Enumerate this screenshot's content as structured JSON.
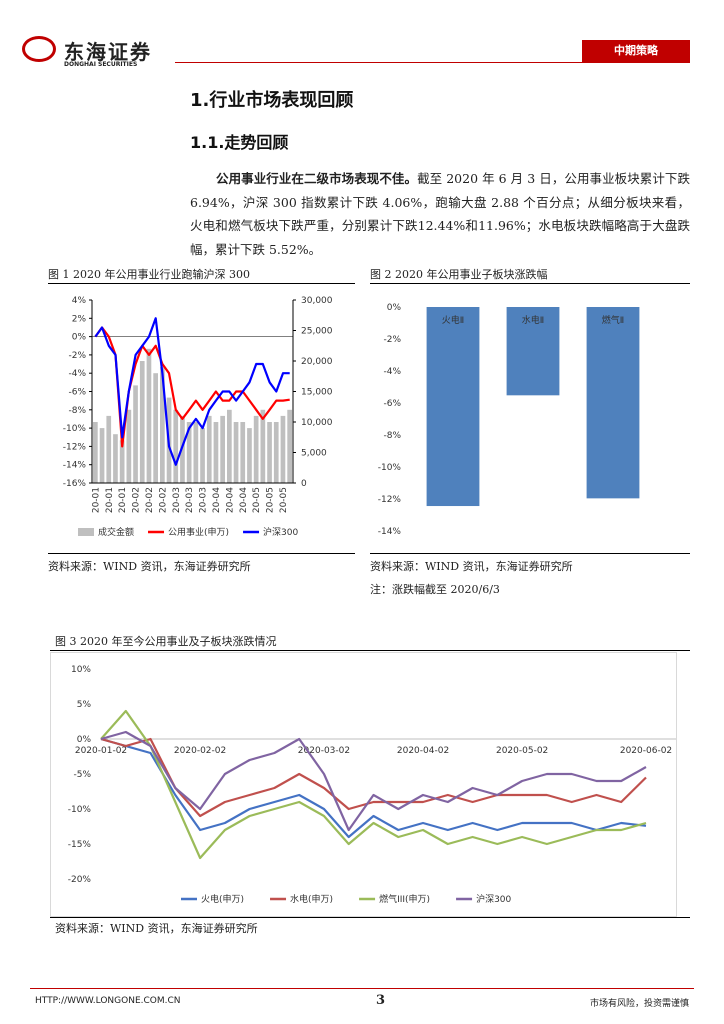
{
  "header": {
    "logo": "东海证券",
    "logo_en": "DONGHAI SECURITIES",
    "tag": "中期策略"
  },
  "section": {
    "title": "1.行业市场表现回顾",
    "subtitle": "1.1.走势回顾",
    "lead": "公用事业行业在二级市场表现不佳。",
    "text": "截至 2020 年 6 月 3 日，公用事业板块累计下跌 6.94%，沪深 300 指数累计下跌 4.06%，跑输大盘 2.88 个百分点；从细分板块来看，火电和燃气板块下跌严重，分别累计下跌12.44%和11.96%；水电板块跌幅略高于大盘跌幅，累计下跌 5.52%。"
  },
  "figures": [
    {
      "caption": "图 1 2020 年公用事业行业跑输沪深 300",
      "source": "资料来源：WIND 资讯，东海证券研究所"
    },
    {
      "caption": "图 2 2020 年公用事业子板块涨跌幅",
      "source": "资料来源：WIND 资讯，东海证券研究所",
      "note": "注：涨跌幅截至 2020/6/3"
    },
    {
      "caption": "图 3 2020 年至今公用事业及子板块涨跌情况",
      "source": "资料来源：WIND 资讯，东海证券研究所"
    }
  ],
  "chart_data": [
    {
      "type": "combo",
      "categories": [
        "20-01",
        null,
        "20-01",
        null,
        "20-01",
        null,
        "20-02",
        null,
        "20-02",
        null,
        "20-02",
        null,
        "20-03",
        null,
        "20-03",
        null,
        "20-03",
        null,
        "20-04",
        null,
        "20-04",
        null,
        "20-04",
        null,
        "20-05",
        null,
        "20-05",
        null,
        "20-05",
        null
      ],
      "series": [
        {
          "name": "成交金额",
          "color": "#bfbfbf",
          "kind": "bar",
          "axis": "y2",
          "values": [
            10000,
            9000,
            11000,
            8000,
            7000,
            12000,
            16000,
            20000,
            22000,
            18000,
            19000,
            14000,
            12000,
            11000,
            10000,
            10000,
            9000,
            11000,
            10000,
            11000,
            12000,
            10000,
            10000,
            9000,
            11000,
            12000,
            10000,
            10000,
            11000,
            12000
          ]
        },
        {
          "name": "公用事业(申万)",
          "color": "#ff0000",
          "kind": "line",
          "values": [
            0,
            1,
            0,
            -2,
            -12,
            -6,
            -3,
            -1,
            -2,
            -1,
            -3,
            -4,
            -8,
            -9,
            -8,
            -7,
            -8,
            -7,
            -6,
            -7,
            -7,
            -6,
            -6,
            -7,
            -8,
            -9,
            -8,
            -7,
            -7,
            -6.9
          ]
        },
        {
          "name": "沪深300",
          "color": "#0000ff",
          "kind": "line",
          "values": [
            0,
            1,
            -1,
            -2,
            -11,
            -6,
            -2,
            -1,
            0,
            2,
            -4,
            -12,
            -14,
            -12,
            -10,
            -9,
            -10,
            -8,
            -7,
            -6,
            -6,
            -7,
            -6,
            -5,
            -3,
            -3,
            -5,
            -6,
            -4,
            -4
          ]
        }
      ],
      "ylim": [
        -16,
        4
      ],
      "yticks": [
        {
          "value": 4,
          "label": "4%"
        },
        {
          "value": 2,
          "label": "2%"
        },
        {
          "value": 0,
          "label": "0%"
        },
        {
          "value": -2,
          "label": "-2%"
        },
        {
          "value": -4,
          "label": "-4%"
        },
        {
          "value": -6,
          "label": "-6%"
        },
        {
          "value": -8,
          "label": "-8%"
        },
        {
          "value": -10,
          "label": "-10%"
        },
        {
          "value": -12,
          "label": "-12%"
        },
        {
          "value": -14,
          "label": "-14%"
        },
        {
          "value": -16,
          "label": "-16%"
        }
      ],
      "y2lim": [
        0,
        30000
      ],
      "y2ticks": [
        {
          "value": 30000,
          "label": "30,000"
        },
        {
          "value": 25000,
          "label": "25,000"
        },
        {
          "value": 20000,
          "label": "20,000"
        },
        {
          "value": 15000,
          "label": "15,000"
        },
        {
          "value": 10000,
          "label": "10,000"
        },
        {
          "value": 5000,
          "label": "5,000"
        },
        0
      ],
      "legend": "bottom"
    },
    {
      "type": "bar",
      "categories": [
        "火电Ⅱ",
        "水电Ⅱ",
        "燃气Ⅱ"
      ],
      "values": [
        -12.44,
        -5.52,
        -11.96
      ],
      "color": "#4f81bd",
      "ylim": [
        -14,
        0
      ],
      "yticks": [
        {
          "value": 0,
          "label": "0%"
        },
        {
          "value": -2,
          "label": "-2%"
        },
        {
          "value": -4,
          "label": "-4%"
        },
        {
          "value": -6,
          "label": "-6%"
        },
        {
          "value": -8,
          "label": "-8%"
        },
        {
          "value": -10,
          "label": "-10%"
        },
        {
          "value": -12,
          "label": "-12%"
        },
        {
          "value": -14,
          "label": "-14%"
        }
      ]
    },
    {
      "type": "line",
      "categories": [
        "2020-01-02",
        null,
        null,
        null,
        "2020-02-02",
        null,
        null,
        null,
        null,
        "2020-03-02",
        null,
        null,
        null,
        "2020-04-02",
        null,
        null,
        null,
        "2020-05-02",
        null,
        null,
        null,
        null,
        "2020-06-02"
      ],
      "series": [
        {
          "name": "火电(申万)",
          "color": "#4472c4",
          "values": [
            0,
            -1,
            -2,
            -8,
            -13,
            -12,
            -10,
            -9,
            -8,
            -10,
            -14,
            -11,
            -13,
            -12,
            -13,
            -12,
            -13,
            -12,
            -12,
            -12,
            -13,
            -12,
            -12.4
          ]
        },
        {
          "name": "水电(申万)",
          "color": "#c0504d",
          "values": [
            0,
            -1,
            0,
            -7,
            -11,
            -9,
            -8,
            -7,
            -5,
            -7,
            -10,
            -9,
            -9,
            -9,
            -8,
            -9,
            -8,
            -8,
            -8,
            -9,
            -8,
            -9,
            -5.5
          ]
        },
        {
          "name": "燃气III(申万)",
          "color": "#9bbb59",
          "values": [
            0,
            4,
            -1,
            -9,
            -17,
            -13,
            -11,
            -10,
            -9,
            -11,
            -15,
            -12,
            -14,
            -13,
            -15,
            -14,
            -15,
            -14,
            -15,
            -14,
            -13,
            -13,
            -12
          ]
        },
        {
          "name": "沪深300",
          "color": "#8064a2",
          "values": [
            0,
            1,
            -1,
            -7,
            -10,
            -5,
            -3,
            -2,
            0,
            -5,
            -13,
            -8,
            -10,
            -8,
            -9,
            -7,
            -8,
            -6,
            -5,
            -5,
            -6,
            -6,
            -4
          ]
        }
      ],
      "ylim": [
        -20,
        10
      ],
      "yticks": [
        {
          "value": 10,
          "label": "10%"
        },
        {
          "value": 5,
          "label": "5%"
        },
        {
          "value": 0,
          "label": "0%"
        },
        {
          "value": -5,
          "label": "-5%"
        },
        {
          "value": -10,
          "label": "-10%"
        },
        {
          "value": -15,
          "label": "-15%"
        },
        {
          "value": -20,
          "label": "-20%"
        }
      ],
      "legend": "bottom"
    }
  ],
  "footer": {
    "url": "HTTP://WWW.LONGONE.COM.CN",
    "page": "3",
    "notice": "市场有风险，投资需谨慎"
  }
}
